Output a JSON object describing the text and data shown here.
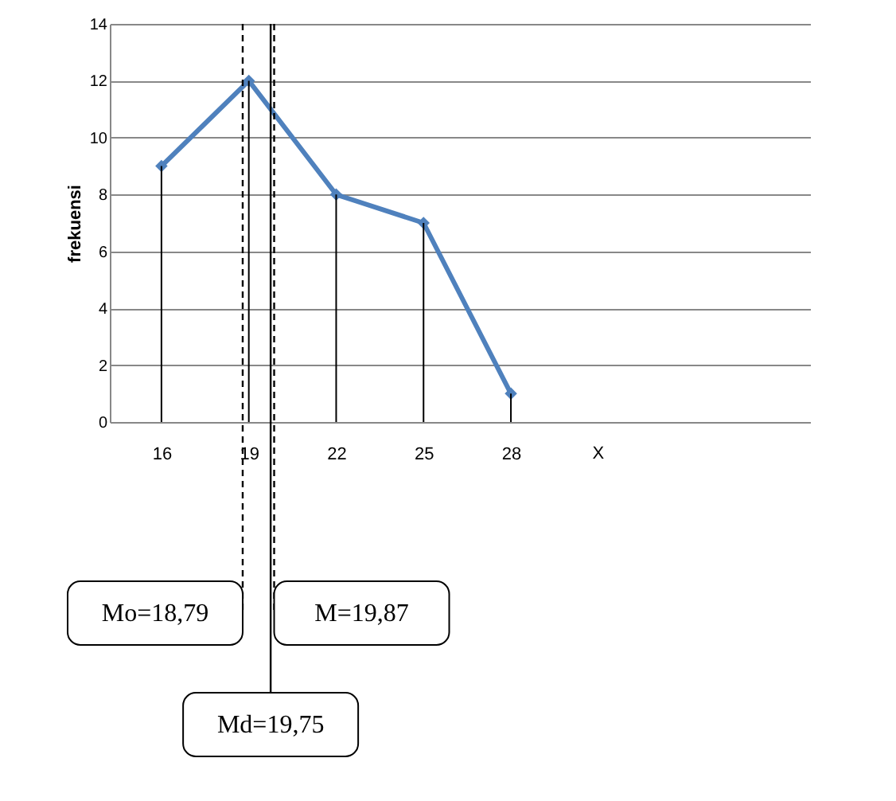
{
  "chart_data": {
    "type": "line",
    "ylabel": "frekuensi",
    "xlabel": "X",
    "x": [
      16,
      19,
      22,
      25,
      28
    ],
    "series": [
      {
        "color": "#4f81bd",
        "values": [
          9,
          12,
          8,
          7,
          1
        ]
      },
      {
        "type": "bar",
        "color": "#000000",
        "values": [
          9,
          12,
          8,
          7,
          1
        ]
      }
    ],
    "xlim": [
      14.5,
      38
    ],
    "xticks": [
      16,
      19,
      22,
      25,
      28
    ],
    "ylim": [
      0,
      14
    ],
    "yticks": [
      0,
      2,
      4,
      6,
      8,
      10,
      12,
      14
    ],
    "grid": "y",
    "marker": "diamond",
    "line_style": "solid",
    "ref_lines": [
      {
        "axis": "x",
        "value": 18.79,
        "label": "Mo=18,79",
        "line_style": "dashed",
        "color": "#000000"
      },
      {
        "axis": "x",
        "value": 19.87,
        "label": "M=19,87",
        "line_style": "dashed",
        "color": "#000000"
      },
      {
        "axis": "x",
        "value": 19.75,
        "label": "Md=19,75",
        "line_style": "solid",
        "color": "#000000"
      }
    ]
  }
}
